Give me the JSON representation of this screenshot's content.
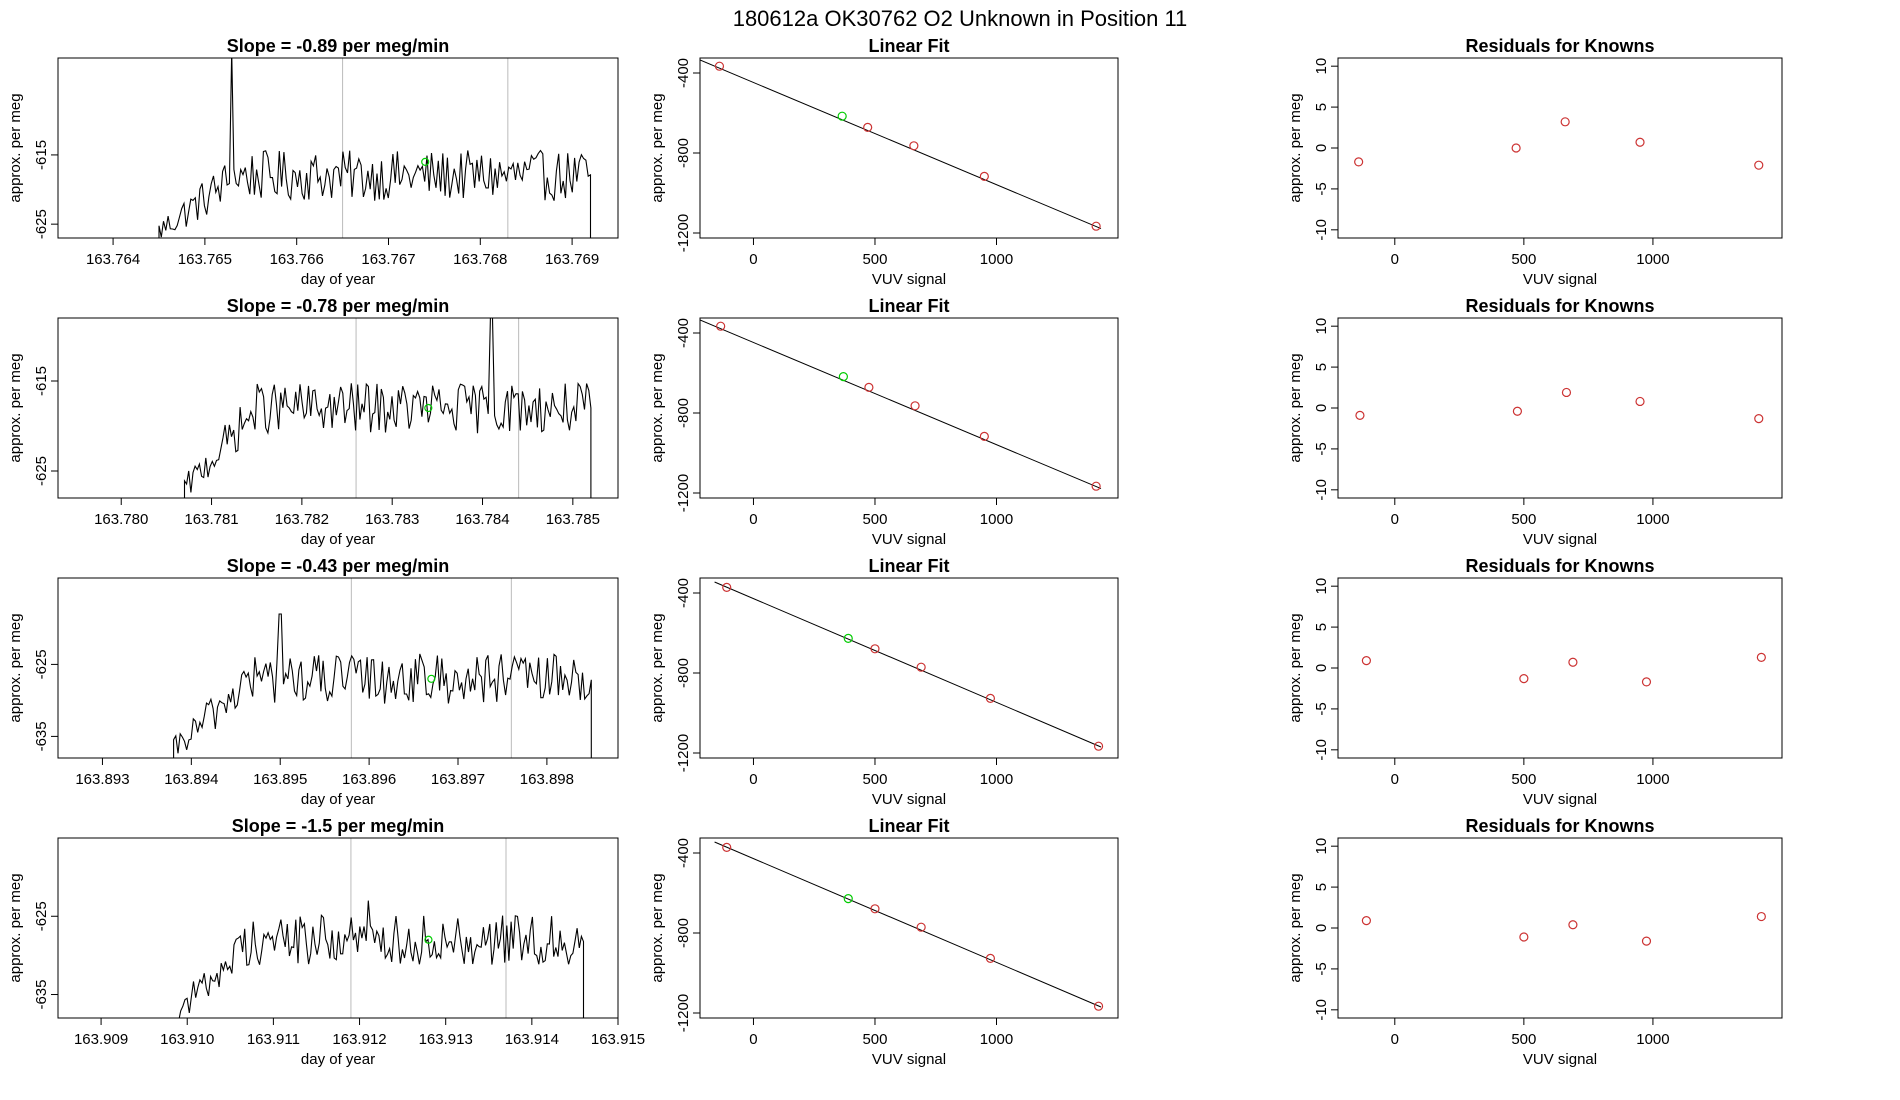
{
  "page": {
    "title": "180612a      OK30762    O2 Unknown in Position  11"
  },
  "colors": {
    "trace": "#000000",
    "unknown_point": "#00cc00",
    "known_point": "#cc3333",
    "marker_line": "#bbbbbb",
    "fit_line": "#000000"
  },
  "chart_data": [
    {
      "type": "line",
      "row": 0,
      "panel": "time",
      "title": "Slope =  -0.89  per meg/min",
      "xlabel": "day of year",
      "ylabel": "approx. per meg",
      "xlim": [
        163.7634,
        163.7695
      ],
      "ylim": [
        -627,
        -601
      ],
      "xticks": [
        163.764,
        163.765,
        163.766,
        163.767,
        163.768,
        163.769
      ],
      "xtick_labels": [
        "163.764",
        "163.765",
        "163.766",
        "163.767",
        "163.768",
        "163.769"
      ],
      "yticks": [
        -615,
        -625
      ],
      "ytick_labels": [
        "-615",
        "-625"
      ],
      "trace": {
        "x_start": 163.7645,
        "x_end": 163.7692,
        "base": -618,
        "start_level": -626,
        "spike_x": 163.7653,
        "spike_y": -600
      },
      "markers_x": [
        163.7665,
        163.7683
      ],
      "unknown_point": {
        "x": 163.7674,
        "y": -616
      }
    },
    {
      "type": "scatter",
      "row": 0,
      "panel": "fit",
      "title": "Linear Fit",
      "xlabel": "VUV signal",
      "ylabel": "approx. per meg",
      "xlim": [
        -220,
        1500
      ],
      "ylim": [
        -1225,
        -325
      ],
      "xticks": [
        0,
        500,
        1000
      ],
      "xtick_labels": [
        "0",
        "500",
        "1000"
      ],
      "yticks": [
        -400,
        -800,
        -1200
      ],
      "ytick_labels": [
        "-400",
        "-800",
        "-1200"
      ],
      "line": {
        "x": [
          -220,
          1430
        ],
        "y": [
          -335,
          -1178
        ]
      },
      "knowns": {
        "x": [
          -140,
          470,
          660,
          950,
          1410
        ],
        "y": [
          -366,
          -672,
          -764,
          -917,
          -1166
        ]
      },
      "unknown": {
        "x": 365,
        "y": -616
      }
    },
    {
      "type": "scatter",
      "row": 0,
      "panel": "residuals",
      "title": "Residuals for Knowns",
      "xlabel": "VUV signal",
      "ylabel": "approx. per meg",
      "xlim": [
        -220,
        1500
      ],
      "ylim": [
        -11,
        11
      ],
      "xticks": [
        0,
        500,
        1000
      ],
      "xtick_labels": [
        "0",
        "500",
        "1000"
      ],
      "yticks": [
        10,
        5,
        0,
        -5,
        -10
      ],
      "ytick_labels": [
        "10",
        "5",
        "0",
        "-5",
        "-10"
      ],
      "x": [
        -140,
        470,
        660,
        950,
        1410
      ],
      "y": [
        -1.7,
        0.0,
        3.2,
        0.7,
        -2.1
      ]
    },
    {
      "type": "line",
      "row": 1,
      "panel": "time",
      "title": "Slope =  -0.78  per meg/min",
      "xlabel": "day of year",
      "ylabel": "approx. per meg",
      "xlim": [
        163.7793,
        163.7855
      ],
      "ylim": [
        -628,
        -608
      ],
      "xticks": [
        163.78,
        163.781,
        163.782,
        163.783,
        163.784,
        163.785
      ],
      "xtick_labels": [
        "163.780",
        "163.781",
        "163.782",
        "163.783",
        "163.784",
        "163.785"
      ],
      "yticks": [
        -615,
        -625
      ],
      "ytick_labels": [
        "-615",
        "-625"
      ],
      "trace": {
        "x_start": 163.7807,
        "x_end": 163.7852,
        "base": -618,
        "start_level": -627,
        "spike_x": 163.7841,
        "spike_y": -608
      },
      "markers_x": [
        163.7826,
        163.7844
      ],
      "unknown_point": {
        "x": 163.7834,
        "y": -618
      }
    },
    {
      "type": "scatter",
      "row": 1,
      "panel": "fit",
      "title": "Linear Fit",
      "xlabel": "VUV signal",
      "ylabel": "approx. per meg",
      "xlim": [
        -220,
        1500
      ],
      "ylim": [
        -1225,
        -325
      ],
      "xticks": [
        0,
        500,
        1000
      ],
      "xtick_labels": [
        "0",
        "500",
        "1000"
      ],
      "yticks": [
        -400,
        -800,
        -1200
      ],
      "ytick_labels": [
        "-400",
        "-800",
        "-1200"
      ],
      "line": {
        "x": [
          -220,
          1430
        ],
        "y": [
          -335,
          -1178
        ]
      },
      "knowns": {
        "x": [
          -135,
          475,
          665,
          950,
          1410
        ],
        "y": [
          -366,
          -672,
          -764,
          -917,
          -1166
        ]
      },
      "unknown": {
        "x": 370,
        "y": -618
      }
    },
    {
      "type": "scatter",
      "row": 1,
      "panel": "residuals",
      "title": "Residuals for Knowns",
      "xlabel": "VUV signal",
      "ylabel": "approx. per meg",
      "xlim": [
        -220,
        1500
      ],
      "ylim": [
        -11,
        11
      ],
      "xticks": [
        0,
        500,
        1000
      ],
      "xtick_labels": [
        "0",
        "500",
        "1000"
      ],
      "yticks": [
        10,
        5,
        0,
        -5,
        -10
      ],
      "ytick_labels": [
        "10",
        "5",
        "0",
        "-5",
        "-10"
      ],
      "x": [
        -135,
        475,
        665,
        950,
        1410
      ],
      "y": [
        -0.9,
        -0.4,
        1.9,
        0.8,
        -1.3
      ]
    },
    {
      "type": "line",
      "row": 2,
      "panel": "time",
      "title": "Slope =  -0.43  per meg/min",
      "xlabel": "day of year",
      "ylabel": "approx. per meg",
      "xlim": [
        163.8925,
        163.8988
      ],
      "ylim": [
        -638,
        -613
      ],
      "xticks": [
        163.893,
        163.894,
        163.895,
        163.896,
        163.897,
        163.898
      ],
      "xtick_labels": [
        "163.893",
        "163.894",
        "163.895",
        "163.896",
        "163.897",
        "163.898"
      ],
      "yticks": [
        -625,
        -635
      ],
      "ytick_labels": [
        "-625",
        "-635"
      ],
      "trace": {
        "x_start": 163.8938,
        "x_end": 163.8985,
        "base": -627,
        "start_level": -637,
        "spike_x": 163.895,
        "spike_y": -618
      },
      "markers_x": [
        163.8958,
        163.8976
      ],
      "unknown_point": {
        "x": 163.8967,
        "y": -627
      }
    },
    {
      "type": "scatter",
      "row": 2,
      "panel": "fit",
      "title": "Linear Fit",
      "xlabel": "VUV signal",
      "ylabel": "approx. per meg",
      "xlim": [
        -220,
        1500
      ],
      "ylim": [
        -1225,
        -325
      ],
      "xticks": [
        0,
        500,
        1000
      ],
      "xtick_labels": [
        "0",
        "500",
        "1000"
      ],
      "yticks": [
        -400,
        -800,
        -1200
      ],
      "ytick_labels": [
        "-400",
        "-800",
        "-1200"
      ],
      "line": {
        "x": [
          -160,
          1430
        ],
        "y": [
          -345,
          -1170
        ]
      },
      "knowns": {
        "x": [
          -110,
          500,
          690,
          975,
          1420
        ],
        "y": [
          -372,
          -679,
          -771,
          -927,
          -1166
        ]
      },
      "unknown": {
        "x": 390,
        "y": -627
      }
    },
    {
      "type": "scatter",
      "row": 2,
      "panel": "residuals",
      "title": "Residuals for Knowns",
      "xlabel": "VUV signal",
      "ylabel": "approx. per meg",
      "xlim": [
        -220,
        1500
      ],
      "ylim": [
        -11,
        11
      ],
      "xticks": [
        0,
        500,
        1000
      ],
      "xtick_labels": [
        "0",
        "500",
        "1000"
      ],
      "yticks": [
        10,
        5,
        0,
        -5,
        -10
      ],
      "ytick_labels": [
        "10",
        "5",
        "0",
        "-5",
        "-10"
      ],
      "x": [
        -110,
        500,
        690,
        975,
        1420
      ],
      "y": [
        0.9,
        -1.3,
        0.7,
        -1.7,
        1.3
      ]
    },
    {
      "type": "line",
      "row": 3,
      "panel": "time",
      "title": "Slope =  -1.5  per meg/min",
      "xlabel": "day of year",
      "ylabel": "approx. per meg",
      "xlim": [
        163.9085,
        163.915
      ],
      "ylim": [
        -638,
        -615
      ],
      "xticks": [
        163.909,
        163.91,
        163.911,
        163.912,
        163.913,
        163.914,
        163.915
      ],
      "xtick_labels": [
        "163.909",
        "163.910",
        "163.911",
        "163.912",
        "163.913",
        "163.914",
        "163.915"
      ],
      "yticks": [
        -625,
        -635
      ],
      "ytick_labels": [
        "-625",
        "-635"
      ],
      "trace": {
        "x_start": 163.9099,
        "x_end": 163.9146,
        "base": -628,
        "start_level": -637,
        "spike_x": 163.9121,
        "spike_y": -623
      },
      "markers_x": [
        163.9119,
        163.9137
      ],
      "unknown_point": {
        "x": 163.9128,
        "y": -628
      }
    },
    {
      "type": "scatter",
      "row": 3,
      "panel": "fit",
      "title": "Linear Fit",
      "xlabel": "VUV signal",
      "ylabel": "approx. per meg",
      "xlim": [
        -220,
        1500
      ],
      "ylim": [
        -1225,
        -325
      ],
      "xticks": [
        0,
        500,
        1000
      ],
      "xtick_labels": [
        "0",
        "500",
        "1000"
      ],
      "yticks": [
        -400,
        -800,
        -1200
      ],
      "ytick_labels": [
        "-400",
        "-800",
        "-1200"
      ],
      "line": {
        "x": [
          -160,
          1430
        ],
        "y": [
          -345,
          -1170
        ]
      },
      "knowns": {
        "x": [
          -110,
          500,
          690,
          975,
          1420
        ],
        "y": [
          -372,
          -679,
          -771,
          -927,
          -1166
        ]
      },
      "unknown": {
        "x": 390,
        "y": -628
      }
    },
    {
      "type": "scatter",
      "row": 3,
      "panel": "residuals",
      "title": "Residuals for Knowns",
      "xlabel": "VUV signal",
      "ylabel": "approx. per meg",
      "xlim": [
        -220,
        1500
      ],
      "ylim": [
        -11,
        11
      ],
      "xticks": [
        0,
        500,
        1000
      ],
      "xtick_labels": [
        "0",
        "500",
        "1000"
      ],
      "yticks": [
        10,
        5,
        0,
        -5,
        -10
      ],
      "ytick_labels": [
        "10",
        "5",
        "0",
        "-5",
        "-10"
      ],
      "x": [
        -110,
        500,
        690,
        975,
        1420
      ],
      "y": [
        0.9,
        -1.1,
        0.4,
        -1.6,
        1.4
      ]
    }
  ]
}
